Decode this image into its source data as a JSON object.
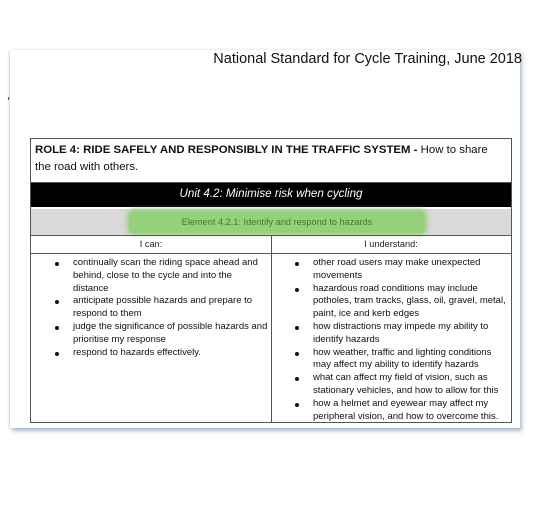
{
  "document": {
    "title": "National Standard for Cycle Training, June 2018"
  },
  "role": {
    "bold": "ROLE 4: RIDE SAFELY AND RESPONSIBLY IN THE TRAFFIC SYSTEM -",
    "rest": " How to share the road with others."
  },
  "unit": {
    "label": "Unit 4.2: Minimise risk when cycling"
  },
  "element": {
    "label": "Element 4.2.1: Identify and respond to hazards",
    "highlight_color": "#95d07a"
  },
  "columns": {
    "left_header": "I can:",
    "right_header": "I understand:"
  },
  "can_items": [
    "continually scan the riding space ahead and behind, close to the cycle and into the distance",
    "anticipate possible hazards and prepare to respond to them",
    "judge the significance of possible hazards and prioritise my response",
    "respond to hazards effectively."
  ],
  "understand_items": [
    "other road users may make unexpected movements",
    "hazardous road conditions may include potholes, tram tracks, glass, oil, gravel, metal, paint, ice and kerb edges",
    "how distractions may impede my ability to identify hazards",
    "how weather, traffic and lighting conditions may affect my ability to identify hazards",
    "what can affect my field of vision, such as stationary vehicles, and how to allow for this",
    "how a helmet and eyewear may affect my peripheral vision, and how to overcome this."
  ]
}
